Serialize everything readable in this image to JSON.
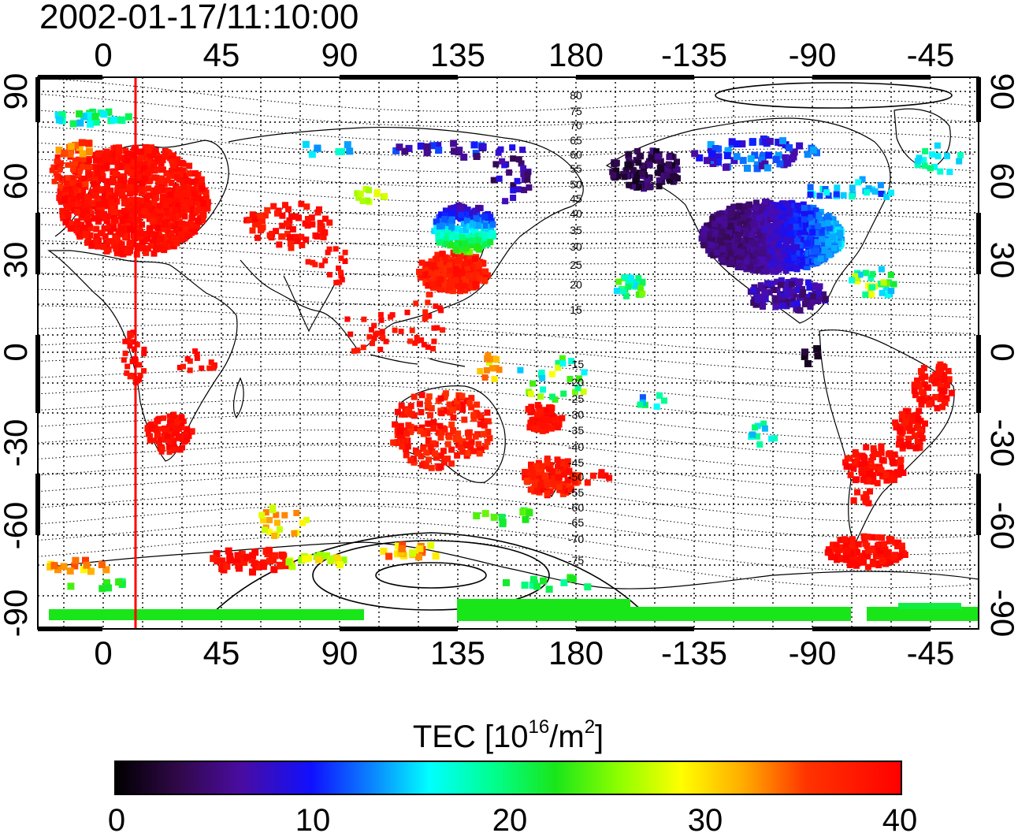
{
  "title": "2002-01-17/11:10:00",
  "lon_ticks_top": [
    "0",
    "45",
    "90",
    "135",
    "180",
    "-135",
    "-90",
    "-45"
  ],
  "lon_ticks_bottom": [
    "0",
    "45",
    "90",
    "135",
    "180",
    "-135",
    "-90",
    "-45"
  ],
  "lat_ticks_left": [
    "90",
    "60",
    "30",
    "0",
    "-30",
    "-60",
    "-90"
  ],
  "lat_ticks_right": [
    "90",
    "60",
    "30",
    "0",
    "-30",
    "-60",
    "-90"
  ],
  "contour_labels_north": [
    "80",
    "75",
    "70",
    "65",
    "60",
    "55",
    "50",
    "45",
    "40",
    "35",
    "30",
    "25",
    "20",
    "15"
  ],
  "contour_labels_south": [
    "-15",
    "-20",
    "-25",
    "-30",
    "-35",
    "-40",
    "-45",
    "-50",
    "-55",
    "-60",
    "-65",
    "-70",
    "-75"
  ],
  "colorbar": {
    "label": "TEC  [10",
    "label_sup": "16",
    "label_mid": "/m",
    "label_sup2": "2",
    "label_end": "]",
    "ticks": [
      "0",
      "10",
      "20",
      "30",
      "40"
    ],
    "colors": [
      "#000000",
      "#3a0a5c",
      "#4b0bb0",
      "#1010ff",
      "#0a8aff",
      "#00ffff",
      "#00ff80",
      "#19e619",
      "#8cff00",
      "#ffff00",
      "#ff9900",
      "#ff3300",
      "#ff0000"
    ]
  },
  "marker_line_color": "#ff0000",
  "tec_regions": [
    {
      "name": "europe",
      "value": 40
    },
    {
      "name": "east-asia",
      "value": 38
    },
    {
      "name": "japan",
      "value": 10
    },
    {
      "name": "north-america",
      "value": 6
    },
    {
      "name": "australia",
      "value": 40
    },
    {
      "name": "south-america",
      "value": 40
    },
    {
      "name": "antarctica-coast",
      "value": 24
    }
  ]
}
